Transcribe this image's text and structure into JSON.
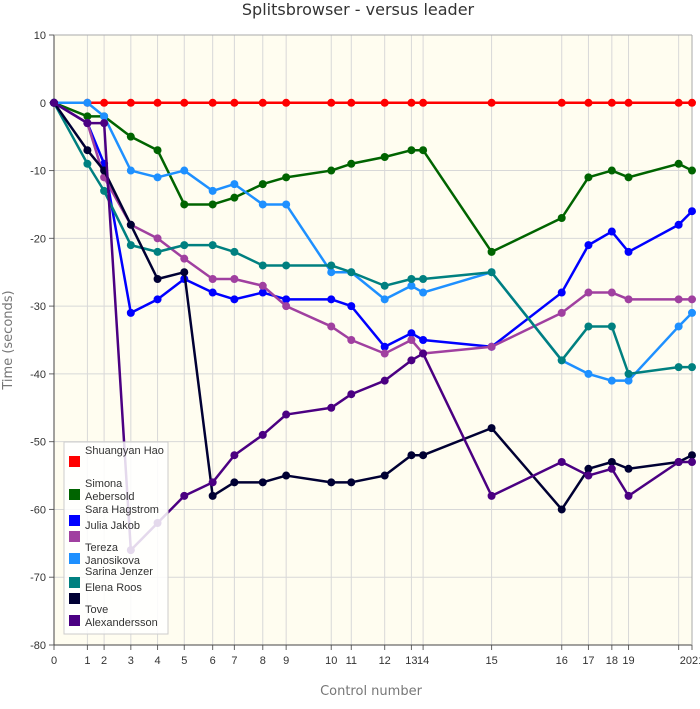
{
  "chart_data": {
    "type": "line",
    "title": "Splitsbrowser - versus leader",
    "xlabel": "Control number",
    "ylabel": "Time (seconds)",
    "ylim": [
      -80,
      10
    ],
    "y_ticks": [
      10,
      0,
      -10,
      -20,
      -30,
      -40,
      -50,
      -60,
      -70,
      -80
    ],
    "x_ticks": [
      0,
      1,
      2,
      3,
      4,
      5,
      6,
      7,
      8,
      9,
      10,
      11,
      12,
      13,
      14,
      15,
      16,
      17,
      18,
      19,
      20,
      21
    ],
    "x_tick_labels": [
      "0",
      "1",
      "2",
      "3",
      "4",
      "5",
      "6",
      "7",
      "8",
      "9",
      "10",
      "11",
      "12",
      "13",
      "14",
      "15",
      "16",
      "17",
      "18",
      "19",
      "",
      "2021"
    ],
    "x_positions": [
      0,
      1,
      1.5,
      2.3,
      3.1,
      3.9,
      4.75,
      5.4,
      6.25,
      6.95,
      8.3,
      8.9,
      9.9,
      10.7,
      11.05,
      13.1,
      15.2,
      16.0,
      16.7,
      17.2,
      18.7,
      19.1
    ],
    "grid": true,
    "legend_position": "bottom-left",
    "series": [
      {
        "name": "Shuangyan Hao",
        "color": "#ff0000",
        "values": [
          0,
          0,
          0,
          0,
          0,
          0,
          0,
          0,
          0,
          0,
          0,
          0,
          0,
          0,
          0,
          0,
          0,
          0,
          0,
          0,
          0,
          0
        ]
      },
      {
        "name": "Simona Aebersold",
        "color": "#006400",
        "values": [
          0,
          -2,
          -2,
          -5,
          -7,
          -15,
          -15,
          -14,
          -12,
          -11,
          -10,
          -9,
          -8,
          -7,
          -7,
          -22,
          -17,
          -11,
          -10,
          -11,
          -9,
          -10
        ]
      },
      {
        "name": "Sara Hagstrom",
        "color": "#0000ff",
        "values": [
          0,
          -3,
          -9,
          -31,
          -29,
          -26,
          -28,
          -29,
          -28,
          -29,
          -29,
          -30,
          -36,
          -34,
          -35,
          -36,
          -28,
          -21,
          -19,
          -22,
          -18,
          -16
        ]
      },
      {
        "name": "Julia Jakob",
        "color": "#a040a0",
        "values": [
          0,
          -3,
          -11,
          -18,
          -20,
          -23,
          -26,
          -26,
          -27,
          -30,
          -33,
          -35,
          -37,
          -35,
          -37,
          -36,
          -31,
          -28,
          -28,
          -29,
          -29,
          -29
        ]
      },
      {
        "name": "Tereza Janosikova",
        "color": "#1e90ff",
        "values": [
          0,
          0,
          -2,
          -10,
          -11,
          -10,
          -13,
          -12,
          -15,
          -15,
          -25,
          -25,
          -29,
          -27,
          -28,
          -25,
          -38,
          -40,
          -41,
          -41,
          -33,
          -31
        ]
      },
      {
        "name": "Sarina Jenzer",
        "color": "#008080",
        "values": [
          0,
          -9,
          -13,
          -21,
          -22,
          -21,
          -21,
          -22,
          -24,
          -24,
          -24,
          -25,
          -27,
          -26,
          -26,
          -25,
          -38,
          -33,
          -33,
          -40,
          -39,
          -39
        ]
      },
      {
        "name": "Elena Roos",
        "color": "#000033",
        "values": [
          0,
          -7,
          -10,
          -18,
          -26,
          -25,
          -58,
          -56,
          -56,
          -55,
          -56,
          -56,
          -55,
          -52,
          -52,
          -48,
          -60,
          -54,
          -53,
          -54,
          -53,
          -52
        ]
      },
      {
        "name": "Tove Alexandersson",
        "color": "#4b0082",
        "values": [
          0,
          -3,
          -3,
          -66,
          -62,
          -58,
          -56,
          -52,
          -49,
          -46,
          -45,
          -43,
          -41,
          -38,
          -37,
          -58,
          -53,
          -55,
          -54,
          -58,
          -53,
          -53
        ]
      }
    ]
  }
}
